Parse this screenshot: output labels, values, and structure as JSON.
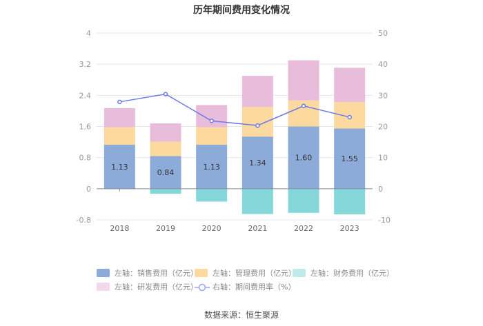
{
  "chart_data": {
    "type": "bar",
    "stacked": true,
    "title": "历年期间费用变化情况",
    "categories": [
      "2018",
      "2019",
      "2020",
      "2021",
      "2022",
      "2023"
    ],
    "series": [
      {
        "name": "左轴：销售费用（亿元）",
        "axis": "left",
        "color": "#8cabd9",
        "values": [
          1.13,
          0.84,
          1.13,
          1.34,
          1.6,
          1.55
        ],
        "labels": [
          "1.13",
          "0.84",
          "1.13",
          "1.34",
          "1.60",
          "1.55"
        ]
      },
      {
        "name": "左轴：管理费用（亿元）",
        "axis": "left",
        "color": "#fcd99e",
        "values": [
          0.45,
          0.37,
          0.45,
          0.76,
          0.67,
          0.68
        ]
      },
      {
        "name": "左轴：财务费用（亿元）",
        "axis": "left",
        "color": "#86d7d9",
        "values": [
          -0.01,
          -0.13,
          -0.33,
          -0.65,
          -0.62,
          -0.66
        ]
      },
      {
        "name": "左轴：研发费用（亿元）",
        "axis": "left",
        "color": "#e8bddc",
        "values": [
          0.49,
          0.47,
          0.57,
          0.8,
          1.03,
          0.88
        ]
      },
      {
        "name": "右轴：期间费用率（%）",
        "axis": "right",
        "type": "line",
        "color": "#6c78e6",
        "values": [
          27.9,
          30.4,
          21.8,
          20.3,
          26.6,
          23.0
        ]
      }
    ],
    "left_axis": {
      "ticks": [
        "-0.8",
        "0",
        "0.8",
        "1.6",
        "2.4",
        "3.2",
        "4"
      ],
      "ylim": [
        -0.8,
        4
      ]
    },
    "right_axis": {
      "ticks": [
        "-10",
        "0",
        "10",
        "20",
        "30",
        "40",
        "50"
      ],
      "ylim": [
        -10,
        50
      ]
    },
    "legend_position": "bottom"
  },
  "source": "数据来源：恒生聚源"
}
